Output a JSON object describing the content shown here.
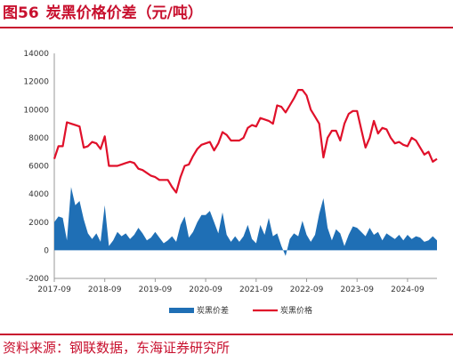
{
  "header": {
    "figure_no": "图56",
    "title": "炭黑价格价差（元/吨）"
  },
  "source": "资料来源：钢联数据，东海证券研究所",
  "colors": {
    "accent": "#c8102e",
    "spread": "#1f6fb5",
    "price": "#e0102a",
    "axis": "#999999"
  },
  "chart_data": {
    "type": "line",
    "x_ticks": [
      "2017-09",
      "2018-09",
      "2019-09",
      "2020-09",
      "2021-09",
      "2022-09",
      "2023-09",
      "2024-09"
    ],
    "x_range": [
      "2017-09",
      "2025-04"
    ],
    "ylim": [
      -2000,
      14000
    ],
    "y_ticks": [
      14000,
      12000,
      10000,
      8000,
      6000,
      4000,
      2000,
      0,
      -2000
    ],
    "grid": false,
    "legend_position": "bottom-center",
    "series": [
      {
        "name": "炭黑价差",
        "type": "area",
        "points": [
          [
            "2017-09",
            2000
          ],
          [
            "2017-10",
            2400
          ],
          [
            "2017-11",
            2300
          ],
          [
            "2017-12",
            700
          ],
          [
            "2018-01",
            4500
          ],
          [
            "2018-02",
            3200
          ],
          [
            "2018-03",
            3500
          ],
          [
            "2018-04",
            2200
          ],
          [
            "2018-05",
            1200
          ],
          [
            "2018-06",
            800
          ],
          [
            "2018-07",
            1200
          ],
          [
            "2018-08",
            600
          ],
          [
            "2018-09",
            3200
          ],
          [
            "2018-10",
            300
          ],
          [
            "2018-11",
            700
          ],
          [
            "2018-12",
            1300
          ],
          [
            "2019-01",
            1000
          ],
          [
            "2019-02",
            1200
          ],
          [
            "2019-03",
            800
          ],
          [
            "2019-04",
            1100
          ],
          [
            "2019-05",
            1600
          ],
          [
            "2019-06",
            1200
          ],
          [
            "2019-07",
            700
          ],
          [
            "2019-08",
            900
          ],
          [
            "2019-09",
            1300
          ],
          [
            "2019-10",
            900
          ],
          [
            "2019-11",
            500
          ],
          [
            "2019-12",
            700
          ],
          [
            "2020-01",
            1000
          ],
          [
            "2020-02",
            600
          ],
          [
            "2020-03",
            1800
          ],
          [
            "2020-04",
            2400
          ],
          [
            "2020-05",
            900
          ],
          [
            "2020-06",
            1300
          ],
          [
            "2020-07",
            2000
          ],
          [
            "2020-08",
            2500
          ],
          [
            "2020-09",
            2500
          ],
          [
            "2020-10",
            2800
          ],
          [
            "2020-11",
            2000
          ],
          [
            "2020-12",
            1200
          ],
          [
            "2021-01",
            2700
          ],
          [
            "2021-02",
            1100
          ],
          [
            "2021-03",
            600
          ],
          [
            "2021-04",
            1000
          ],
          [
            "2021-05",
            600
          ],
          [
            "2021-06",
            1000
          ],
          [
            "2021-07",
            1800
          ],
          [
            "2021-08",
            800
          ],
          [
            "2021-09",
            500
          ],
          [
            "2021-10",
            1800
          ],
          [
            "2021-11",
            1100
          ],
          [
            "2021-12",
            2300
          ],
          [
            "2022-01",
            1000
          ],
          [
            "2022-02",
            1200
          ],
          [
            "2022-03",
            300
          ],
          [
            "2022-04",
            -400
          ],
          [
            "2022-05",
            800
          ],
          [
            "2022-06",
            1200
          ],
          [
            "2022-07",
            1000
          ],
          [
            "2022-08",
            2100
          ],
          [
            "2022-09",
            1100
          ],
          [
            "2022-10",
            600
          ],
          [
            "2022-11",
            1100
          ],
          [
            "2022-12",
            2600
          ],
          [
            "2023-01",
            3700
          ],
          [
            "2023-02",
            1600
          ],
          [
            "2023-03",
            700
          ],
          [
            "2023-04",
            1500
          ],
          [
            "2023-05",
            1200
          ],
          [
            "2023-06",
            300
          ],
          [
            "2023-07",
            1100
          ],
          [
            "2023-08",
            1700
          ],
          [
            "2023-09",
            1600
          ],
          [
            "2023-10",
            1300
          ],
          [
            "2023-11",
            1000
          ],
          [
            "2023-12",
            1600
          ],
          [
            "2024-01",
            1100
          ],
          [
            "2024-02",
            1300
          ],
          [
            "2024-03",
            700
          ],
          [
            "2024-04",
            1200
          ],
          [
            "2024-05",
            1000
          ],
          [
            "2024-06",
            800
          ],
          [
            "2024-07",
            1100
          ],
          [
            "2024-08",
            700
          ],
          [
            "2024-09",
            1100
          ],
          [
            "2024-10",
            800
          ],
          [
            "2024-11",
            1000
          ],
          [
            "2024-12",
            900
          ],
          [
            "2025-01",
            600
          ],
          [
            "2025-02",
            700
          ],
          [
            "2025-03",
            1000
          ],
          [
            "2025-04",
            700
          ]
        ]
      },
      {
        "name": "炭黑价格",
        "type": "line",
        "points": [
          [
            "2017-09",
            6500
          ],
          [
            "2017-10",
            7400
          ],
          [
            "2017-11",
            7400
          ],
          [
            "2017-12",
            9100
          ],
          [
            "2018-01",
            9000
          ],
          [
            "2018-02",
            8900
          ],
          [
            "2018-03",
            8800
          ],
          [
            "2018-04",
            7300
          ],
          [
            "2018-05",
            7400
          ],
          [
            "2018-06",
            7700
          ],
          [
            "2018-07",
            7600
          ],
          [
            "2018-08",
            7200
          ],
          [
            "2018-09",
            8100
          ],
          [
            "2018-10",
            6000
          ],
          [
            "2018-11",
            6000
          ],
          [
            "2018-12",
            6000
          ],
          [
            "2019-01",
            6100
          ],
          [
            "2019-02",
            6200
          ],
          [
            "2019-03",
            6300
          ],
          [
            "2019-04",
            6200
          ],
          [
            "2019-05",
            5800
          ],
          [
            "2019-06",
            5700
          ],
          [
            "2019-07",
            5500
          ],
          [
            "2019-08",
            5300
          ],
          [
            "2019-09",
            5200
          ],
          [
            "2019-10",
            5000
          ],
          [
            "2019-11",
            5000
          ],
          [
            "2019-12",
            5000
          ],
          [
            "2020-01",
            4500
          ],
          [
            "2020-02",
            4100
          ],
          [
            "2020-03",
            5200
          ],
          [
            "2020-04",
            6000
          ],
          [
            "2020-05",
            6100
          ],
          [
            "2020-06",
            6700
          ],
          [
            "2020-07",
            7200
          ],
          [
            "2020-08",
            7500
          ],
          [
            "2020-09",
            7600
          ],
          [
            "2020-10",
            7700
          ],
          [
            "2020-11",
            7100
          ],
          [
            "2020-12",
            7600
          ],
          [
            "2021-01",
            8400
          ],
          [
            "2021-02",
            8200
          ],
          [
            "2021-03",
            7800
          ],
          [
            "2021-04",
            7800
          ],
          [
            "2021-05",
            7800
          ],
          [
            "2021-06",
            8000
          ],
          [
            "2021-07",
            8700
          ],
          [
            "2021-08",
            8900
          ],
          [
            "2021-09",
            8800
          ],
          [
            "2021-10",
            9400
          ],
          [
            "2021-11",
            9300
          ],
          [
            "2021-12",
            9200
          ],
          [
            "2022-01",
            9000
          ],
          [
            "2022-02",
            10300
          ],
          [
            "2022-03",
            10200
          ],
          [
            "2022-04",
            9800
          ],
          [
            "2022-05",
            10300
          ],
          [
            "2022-06",
            10800
          ],
          [
            "2022-07",
            11400
          ],
          [
            "2022-08",
            11400
          ],
          [
            "2022-09",
            11000
          ],
          [
            "2022-10",
            10000
          ],
          [
            "2022-11",
            9500
          ],
          [
            "2022-12",
            9000
          ],
          [
            "2023-01",
            6600
          ],
          [
            "2023-02",
            8000
          ],
          [
            "2023-03",
            8500
          ],
          [
            "2023-04",
            8500
          ],
          [
            "2023-05",
            7800
          ],
          [
            "2023-06",
            9000
          ],
          [
            "2023-07",
            9700
          ],
          [
            "2023-08",
            9900
          ],
          [
            "2023-09",
            9900
          ],
          [
            "2023-10",
            8600
          ],
          [
            "2023-11",
            7300
          ],
          [
            "2023-12",
            8000
          ],
          [
            "2024-01",
            9200
          ],
          [
            "2024-02",
            8300
          ],
          [
            "2024-03",
            8700
          ],
          [
            "2024-04",
            8600
          ],
          [
            "2024-05",
            8000
          ],
          [
            "2024-06",
            7600
          ],
          [
            "2024-07",
            7700
          ],
          [
            "2024-08",
            7500
          ],
          [
            "2024-09",
            7400
          ],
          [
            "2024-10",
            8000
          ],
          [
            "2024-11",
            7800
          ],
          [
            "2024-12",
            7300
          ],
          [
            "2025-01",
            6800
          ],
          [
            "2025-02",
            7000
          ],
          [
            "2025-03",
            6300
          ],
          [
            "2025-04",
            6500
          ]
        ]
      }
    ]
  }
}
